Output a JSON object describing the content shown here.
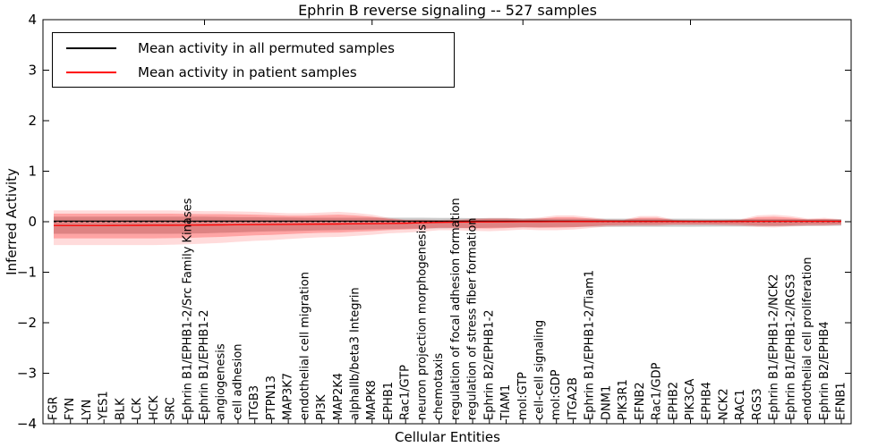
{
  "title": "Ephrin B reverse signaling -- 527 samples",
  "legend": {
    "items": [
      {
        "label": "Mean activity in all permuted samples",
        "color": "#000000"
      },
      {
        "label": "Mean activity in patient samples",
        "color": "#ff0000"
      }
    ]
  },
  "chart_data": {
    "type": "line",
    "title": "Ephrin B reverse signaling -- 527 samples",
    "xlabel": "Cellular Entities",
    "ylabel": "Inferred Activity",
    "ylim": [
      -4,
      4
    ],
    "grid": false,
    "legend_position": "upper left",
    "yticks": [
      4,
      3,
      2,
      1,
      0,
      -1,
      -2,
      -3,
      -4
    ],
    "ytick_labels": [
      "4",
      "3",
      "2",
      "1",
      "0",
      "−1",
      "−2",
      "−3",
      "−4"
    ],
    "categories": [
      "FGR",
      "FYN",
      "LYN",
      "YES1",
      "BLK",
      "LCK",
      "HCK",
      "SRC",
      "Ephrin B1/EPHB1-2/Src Family Kinases",
      "Ephrin B1/EPHB1-2",
      "angiogenesis",
      "cell adhesion",
      "ITGB3",
      "PTPN13",
      "MAP3K7",
      "endothelial cell migration",
      "PI3K",
      "MAP2K4",
      "alphaIIb/beta3 Integrin",
      "MAPK8",
      "EPHB1",
      "Rac1/GTP",
      "neuron projection morphogenesis",
      "chemotaxis",
      "regulation of focal adhesion formation",
      "regulation of stress fiber formation",
      "Ephrin B2/EPHB1-2",
      "TIAM1",
      "mol:GTP",
      "cell-cell signaling",
      "mol:GDP",
      "ITGA2B",
      "Ephrin B1/EPHB1-2/Tiam1",
      "DNM1",
      "PIK3R1",
      "EFNB2",
      "Rac1/GDP",
      "EPHB2",
      "PIK3CA",
      "EPHB4",
      "NCK2",
      "RAC1",
      "RGS3",
      "Ephrin B1/EPHB1-2/NCK2",
      "Ephrin B1/EPHB1-2/RGS3",
      "endothelial cell proliferation",
      "Ephrin B2/EPHB4",
      "EFNB1"
    ],
    "reference_line": {
      "y": 0,
      "style": "dashed",
      "color": "#000000"
    },
    "series": [
      {
        "name": "Mean activity in all permuted samples",
        "color": "#000000",
        "line": "solid",
        "values": [
          0.012,
          0.012,
          0.012,
          0.012,
          0.012,
          0.012,
          0.012,
          0.012,
          0.012,
          0.012,
          0.012,
          0.012,
          0.012,
          0.012,
          0.012,
          0.012,
          0.012,
          0.012,
          0.012,
          0.012,
          0.012,
          0.012,
          0.012,
          0.012,
          0.012,
          0.012,
          0.012,
          0.012,
          0.012,
          0.012,
          0.012,
          0.012,
          0.012,
          0.012,
          0.012,
          0.012,
          0.012,
          0.012,
          0.012,
          0.012,
          0.012,
          0.012,
          0.012,
          0.012,
          0.012,
          0.012,
          0.012,
          0.012
        ],
        "band": {
          "color": "#808080",
          "opacity": 0.4,
          "upper": [
            0.1,
            0.1,
            0.1,
            0.1,
            0.1,
            0.1,
            0.1,
            0.1,
            0.1,
            0.1,
            0.095,
            0.09,
            0.09,
            0.085,
            0.085,
            0.08,
            0.08,
            0.08,
            0.08,
            0.08,
            0.08,
            0.08,
            0.08,
            0.075,
            0.075,
            0.07,
            0.07,
            0.07,
            0.065,
            0.065,
            0.06,
            0.06,
            0.06,
            0.06,
            0.06,
            0.06,
            0.06,
            0.06,
            0.06,
            0.058,
            0.058,
            0.055,
            0.055,
            0.055,
            0.052,
            0.05,
            0.05,
            0.05
          ],
          "lower": [
            -0.24,
            -0.24,
            -0.24,
            -0.24,
            -0.24,
            -0.24,
            -0.24,
            -0.24,
            -0.235,
            -0.23,
            -0.22,
            -0.21,
            -0.2,
            -0.19,
            -0.185,
            -0.18,
            -0.17,
            -0.165,
            -0.16,
            -0.15,
            -0.145,
            -0.14,
            -0.135,
            -0.13,
            -0.128,
            -0.125,
            -0.12,
            -0.115,
            -0.11,
            -0.11,
            -0.105,
            -0.105,
            -0.1,
            -0.1,
            -0.1,
            -0.1,
            -0.1,
            -0.1,
            -0.1,
            -0.098,
            -0.095,
            -0.095,
            -0.092,
            -0.09,
            -0.088,
            -0.085,
            -0.082,
            -0.08
          ]
        }
      },
      {
        "name": "Mean activity in patient samples",
        "color": "#ff0000",
        "line": "solid",
        "values": [
          -0.075,
          -0.075,
          -0.075,
          -0.075,
          -0.073,
          -0.072,
          -0.07,
          -0.07,
          -0.068,
          -0.065,
          -0.063,
          -0.06,
          -0.058,
          -0.055,
          -0.053,
          -0.05,
          -0.048,
          -0.045,
          -0.042,
          -0.04,
          -0.035,
          -0.03,
          -0.02,
          -0.012,
          -0.008,
          -0.005,
          -0.003,
          -0.002,
          0,
          0,
          0.002,
          0.003,
          0.003,
          0.004,
          0.004,
          0.005,
          0.005,
          0.005,
          0.005,
          0.005,
          0.005,
          0.005,
          0.006,
          0.006,
          0.006,
          0.006,
          0.006,
          0.006
        ],
        "band": {
          "color": "#ff0000",
          "opacity": 0.25,
          "upper": [
            0.16,
            0.16,
            0.16,
            0.16,
            0.16,
            0.16,
            0.16,
            0.16,
            0.155,
            0.15,
            0.15,
            0.145,
            0.14,
            0.13,
            0.12,
            0.12,
            0.13,
            0.14,
            0.125,
            0.1,
            0.055,
            0.03,
            0.03,
            0.025,
            0.03,
            0.045,
            0.055,
            0.055,
            0.045,
            0.06,
            0.09,
            0.09,
            0.065,
            0.035,
            0.03,
            0.08,
            0.08,
            0.03,
            0.022,
            0.022,
            0.025,
            0.035,
            0.09,
            0.1,
            0.08,
            0.045,
            0.055,
            0.035
          ],
          "lower": [
            -0.33,
            -0.33,
            -0.33,
            -0.33,
            -0.33,
            -0.33,
            -0.33,
            -0.325,
            -0.32,
            -0.31,
            -0.3,
            -0.285,
            -0.27,
            -0.26,
            -0.245,
            -0.23,
            -0.22,
            -0.215,
            -0.2,
            -0.185,
            -0.165,
            -0.155,
            -0.14,
            -0.12,
            -0.12,
            -0.13,
            -0.135,
            -0.125,
            -0.11,
            -0.12,
            -0.12,
            -0.11,
            -0.09,
            -0.07,
            -0.065,
            -0.06,
            -0.06,
            -0.05,
            -0.05,
            -0.05,
            -0.055,
            -0.06,
            -0.075,
            -0.08,
            -0.07,
            -0.06,
            -0.06,
            -0.05
          ]
        },
        "outer_band": {
          "color": "#ff0000",
          "opacity": 0.14,
          "upper": [
            0.224,
            0.224,
            0.224,
            0.224,
            0.224,
            0.224,
            0.224,
            0.224,
            0.217,
            0.21,
            0.21,
            0.203,
            0.196,
            0.182,
            0.168,
            0.168,
            0.182,
            0.196,
            0.175,
            0.14,
            0.077,
            0.042,
            0.042,
            0.035,
            0.042,
            0.063,
            0.077,
            0.077,
            0.063,
            0.084,
            0.126,
            0.126,
            0.091,
            0.049,
            0.042,
            0.112,
            0.112,
            0.042,
            0.031,
            0.031,
            0.035,
            0.049,
            0.126,
            0.14,
            0.112,
            0.063,
            0.077,
            0.049
          ],
          "lower": [
            -0.462,
            -0.462,
            -0.462,
            -0.462,
            -0.462,
            -0.462,
            -0.462,
            -0.455,
            -0.448,
            -0.434,
            -0.42,
            -0.399,
            -0.378,
            -0.364,
            -0.343,
            -0.322,
            -0.308,
            -0.301,
            -0.28,
            -0.259,
            -0.231,
            -0.217,
            -0.196,
            -0.168,
            -0.168,
            -0.182,
            -0.189,
            -0.175,
            -0.154,
            -0.168,
            -0.168,
            -0.154,
            -0.126,
            -0.098,
            -0.091,
            -0.084,
            -0.084,
            -0.07,
            -0.07,
            -0.07,
            -0.077,
            -0.084,
            -0.105,
            -0.112,
            -0.098,
            -0.084,
            -0.084,
            -0.07
          ]
        }
      }
    ]
  }
}
